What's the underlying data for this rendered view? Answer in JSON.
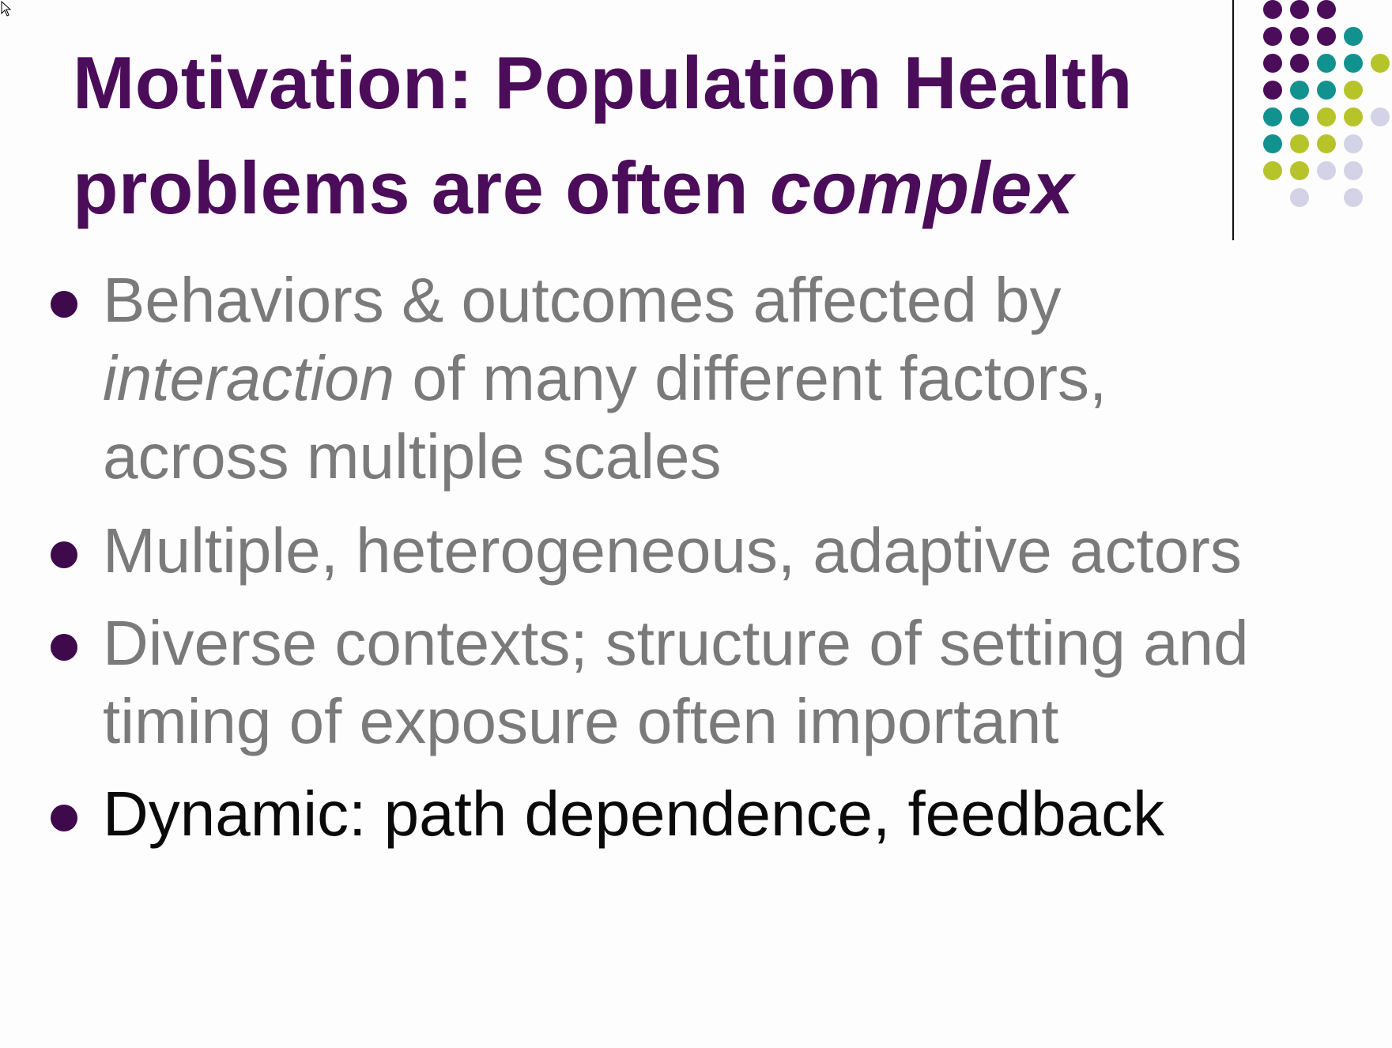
{
  "slide": {
    "title": {
      "line1": "Motivation: Population Health",
      "line2_plain": "problems are often ",
      "line2_emph": "complex"
    },
    "bullets": [
      {
        "emph": "",
        "pre": "Behaviors & outcomes affected by",
        "line2_emph": "interaction",
        "line2_rest": " of many different factors,",
        "line3": "across multiple scales"
      },
      {
        "text": "Multiple, heterogeneous, adaptive actors"
      },
      {
        "line1": "Diverse contexts; structure of setting and",
        "line2": "timing of exposure often important"
      },
      {
        "text": "Dynamic: path dependence, feedback"
      }
    ]
  },
  "decor": {
    "colors": {
      "purple": "#4b0c5a",
      "teal": "#12928f",
      "lime": "#b6c42a",
      "lavender": "#d4d2e6",
      "bullet": "#3e0a4c",
      "dim_text": "#7a7a7a",
      "active_text": "#0a0a0a"
    },
    "dot_grid": [
      [
        "purple",
        "purple",
        "purple",
        "",
        ""
      ],
      [
        "purple",
        "purple",
        "purple",
        "teal",
        ""
      ],
      [
        "purple",
        "purple",
        "teal",
        "teal",
        "lime"
      ],
      [
        "purple",
        "teal",
        "teal",
        "lime",
        ""
      ],
      [
        "teal",
        "teal",
        "lime",
        "lime",
        "lavender"
      ],
      [
        "teal",
        "lime",
        "lime",
        "lavender",
        ""
      ],
      [
        "lime",
        "lime",
        "lavender",
        "lavender",
        ""
      ],
      [
        "",
        "lavender",
        "",
        "lavender",
        ""
      ]
    ],
    "cursor_icon": "arrow-cursor-icon"
  }
}
